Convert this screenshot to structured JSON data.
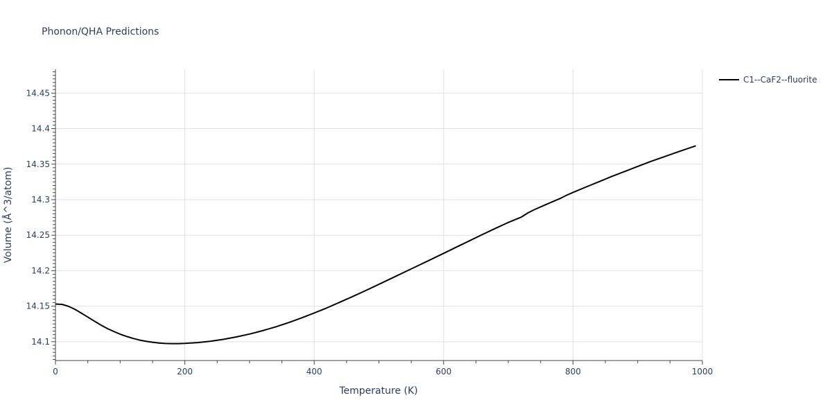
{
  "chart_data": {
    "type": "line",
    "title": "Phonon/QHA Predictions",
    "xlabel": "Temperature (K)",
    "ylabel": "Volume (Å^3/atom)",
    "xlim": [
      0,
      1000
    ],
    "ylim": [
      14.0735,
      14.4835
    ],
    "x_ticks": [
      0,
      200,
      400,
      600,
      800,
      1000
    ],
    "x_tick_labels": [
      "0",
      "200",
      "400",
      "600",
      "800",
      "1000"
    ],
    "y_ticks": [
      14.1,
      14.15,
      14.2,
      14.25,
      14.3,
      14.35,
      14.4,
      14.45
    ],
    "y_tick_labels": [
      "14.1",
      "14.15",
      "14.2",
      "14.25",
      "14.3",
      "14.35",
      "14.4",
      "14.45"
    ],
    "grid": true,
    "legend_position": "top-right, outside plot",
    "series": [
      {
        "name": "C1--CaF2--fluorite",
        "color": "#000000",
        "x": [
          0,
          10,
          20,
          30,
          40,
          50,
          60,
          70,
          80,
          90,
          100,
          110,
          120,
          130,
          140,
          150,
          160,
          170,
          180,
          190,
          200,
          220,
          240,
          260,
          280,
          300,
          320,
          340,
          360,
          380,
          400,
          420,
          440,
          460,
          480,
          500,
          520,
          540,
          560,
          580,
          600,
          620,
          640,
          660,
          680,
          700,
          720,
          730,
          740,
          760,
          780,
          790,
          800,
          820,
          840,
          860,
          880,
          900,
          920,
          940,
          960,
          980,
          990
        ],
        "values": [
          14.153,
          14.1526,
          14.1499,
          14.1456,
          14.1402,
          14.1347,
          14.1291,
          14.1235,
          14.1186,
          14.1145,
          14.1106,
          14.1074,
          14.1047,
          14.1023,
          14.1006,
          14.0992,
          14.0982,
          14.0975,
          14.0973,
          14.0973,
          14.0976,
          14.0988,
          14.1007,
          14.1034,
          14.1068,
          14.1108,
          14.1155,
          14.1208,
          14.1268,
          14.1333,
          14.1404,
          14.1478,
          14.1558,
          14.1639,
          14.1722,
          14.1808,
          14.1895,
          14.1982,
          14.2069,
          14.2156,
          14.2244,
          14.2333,
          14.2421,
          14.2509,
          14.2595,
          14.2679,
          14.2754,
          14.2812,
          14.2858,
          14.2938,
          14.3016,
          14.3062,
          14.3102,
          14.3178,
          14.3252,
          14.3327,
          14.3397,
          14.3468,
          14.3537,
          14.3601,
          14.3665,
          14.3728,
          14.3758
        ]
      }
    ]
  }
}
